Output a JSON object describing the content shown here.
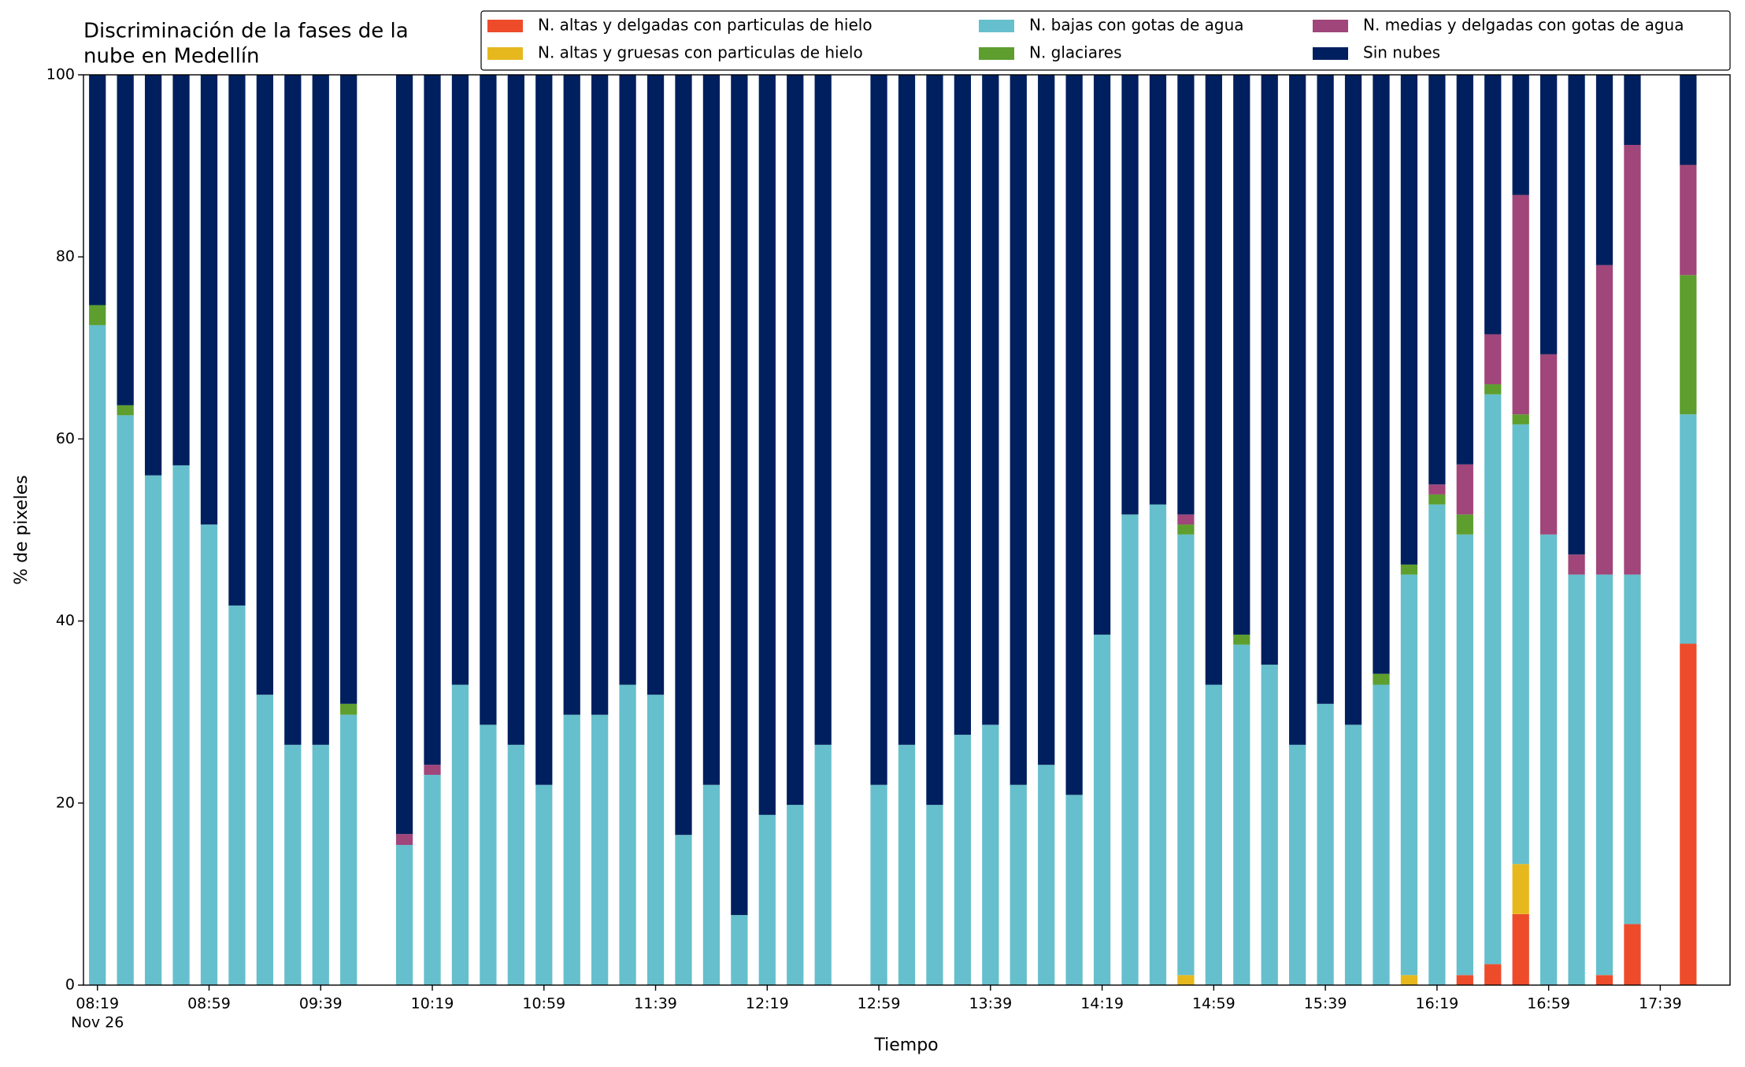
{
  "chart_data": {
    "type": "stacked_bar",
    "title": [
      "Discriminación de la fases de la",
      "nube en Medellín"
    ],
    "xlabel": "Tiempo",
    "ylabel": "% de pixeles",
    "x": [
      "08:19",
      "08:29",
      "08:39",
      "08:49",
      "08:59",
      "09:09",
      "09:19",
      "09:29",
      "09:39",
      "09:49",
      "10:09",
      "10:19",
      "10:29",
      "10:39",
      "10:49",
      "10:59",
      "11:09",
      "11:19",
      "11:29",
      "11:39",
      "11:49",
      "11:59",
      "12:09",
      "12:19",
      "12:29",
      "12:39",
      "12:59",
      "13:09",
      "13:19",
      "13:29",
      "13:39",
      "13:49",
      "13:59",
      "14:09",
      "14:19",
      "14:29",
      "14:39",
      "14:49",
      "14:59",
      "15:09",
      "15:19",
      "15:29",
      "15:39",
      "15:49",
      "15:59",
      "16:09",
      "16:19",
      "16:29",
      "16:39",
      "16:49",
      "16:59",
      "17:09",
      "17:19",
      "17:29",
      "17:49"
    ],
    "xlim": [
      "08:14",
      "18:04"
    ],
    "xticks": [
      "08:19",
      "08:59",
      "09:39",
      "10:19",
      "10:59",
      "11:39",
      "12:19",
      "12:59",
      "13:39",
      "14:19",
      "14:59",
      "15:39",
      "16:19",
      "16:59",
      "17:39"
    ],
    "date_label": "Nov 26",
    "ylim": [
      0,
      100
    ],
    "yticks": [
      0,
      20,
      40,
      60,
      80,
      100
    ],
    "legend": "upper right",
    "series": [
      {
        "name": "N. altas y delgadas con particulas de hielo",
        "color": "#ee4b2b",
        "values": [
          0,
          0,
          0,
          0,
          0,
          0,
          0,
          0,
          0,
          0,
          0,
          0,
          0,
          0,
          0,
          0,
          0,
          0,
          0,
          0,
          0,
          0,
          0,
          0,
          0,
          0,
          0,
          0,
          0,
          0,
          0,
          0,
          0,
          0,
          0,
          0,
          0,
          0,
          0,
          0,
          0,
          0,
          0,
          0,
          0,
          0,
          0,
          1.1,
          2.3,
          7.8,
          0,
          0,
          1.1,
          6.7,
          37.5
        ]
      },
      {
        "name": "N. altas y gruesas con particulas de hielo",
        "color": "#e6b81e",
        "values": [
          0,
          0,
          0,
          0,
          0,
          0,
          0,
          0,
          0,
          0,
          0,
          0,
          0,
          0,
          0,
          0,
          0,
          0,
          0,
          0,
          0,
          0,
          0,
          0,
          0,
          0,
          0,
          0,
          0,
          0,
          0,
          0,
          0,
          0,
          0,
          0,
          0,
          1.1,
          0,
          0,
          0,
          0,
          0,
          0,
          0,
          1.1,
          0,
          0,
          0,
          5.5,
          0,
          0,
          0,
          0,
          0
        ]
      },
      {
        "name": "N. bajas con gotas de agua",
        "color": "#66bfcc",
        "values": [
          72.5,
          62.6,
          56.0,
          57.1,
          50.6,
          41.7,
          31.9,
          26.4,
          26.4,
          29.7,
          15.4,
          23.1,
          33.0,
          28.6,
          26.4,
          22.0,
          29.7,
          29.7,
          33.0,
          31.9,
          16.5,
          22.0,
          7.7,
          18.7,
          19.8,
          26.4,
          22.0,
          26.4,
          19.8,
          27.5,
          28.6,
          22.0,
          24.2,
          20.9,
          38.5,
          51.7,
          52.8,
          48.4,
          33.0,
          37.4,
          35.2,
          26.4,
          30.9,
          28.6,
          33.0,
          44.0,
          52.8,
          48.4,
          62.6,
          48.3,
          49.5,
          45.1,
          44.0,
          38.4,
          25.2
        ]
      },
      {
        "name": "N. glaciares",
        "color": "#5d9e2f",
        "values": [
          2.2,
          1.1,
          0,
          0,
          0,
          0,
          0,
          0,
          0,
          1.2,
          0,
          0,
          0,
          0,
          0,
          0,
          0,
          0,
          0,
          0,
          0,
          0,
          0,
          0,
          0,
          0,
          0,
          0,
          0,
          0,
          0,
          0,
          0,
          0,
          0,
          0,
          0,
          1.1,
          0,
          1.1,
          0,
          0,
          0,
          0,
          1.2,
          1.1,
          1.1,
          2.2,
          1.1,
          1.1,
          0,
          0,
          0,
          0,
          15.3
        ]
      },
      {
        "name": "N. medias y delgadas con gotas de agua",
        "color": "#a0467a",
        "values": [
          0,
          0,
          0,
          0,
          0,
          0,
          0,
          0,
          0,
          0,
          1.2,
          1.1,
          0,
          0,
          0,
          0,
          0,
          0,
          0,
          0,
          0,
          0,
          0,
          0,
          0,
          0,
          0,
          0,
          0,
          0,
          0,
          0,
          0,
          0,
          0,
          0,
          0,
          1.1,
          0,
          0,
          0,
          0,
          0,
          0,
          0,
          0,
          1.1,
          5.5,
          5.5,
          24.1,
          19.8,
          2.2,
          34.0,
          47.2,
          12.1
        ]
      },
      {
        "name": "Sin nubes",
        "color": "#001f5e",
        "values": [
          25.3,
          36.3,
          44.0,
          42.9,
          49.4,
          58.3,
          68.1,
          73.6,
          73.6,
          69.1,
          83.4,
          75.8,
          67.0,
          71.4,
          73.6,
          78.0,
          70.3,
          70.3,
          67.0,
          68.1,
          83.5,
          78.0,
          92.3,
          81.3,
          80.2,
          73.6,
          78.0,
          73.6,
          80.2,
          72.5,
          71.4,
          78.0,
          75.8,
          79.1,
          61.5,
          48.3,
          47.2,
          48.3,
          67.0,
          61.5,
          64.8,
          73.6,
          69.1,
          71.4,
          65.8,
          53.8,
          45.0,
          42.8,
          28.5,
          13.2,
          30.7,
          52.7,
          20.9,
          7.7,
          9.9
        ]
      }
    ]
  }
}
